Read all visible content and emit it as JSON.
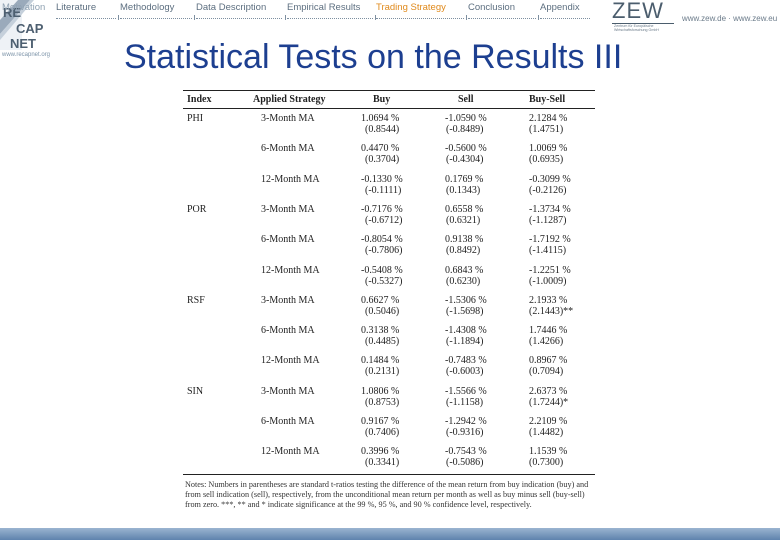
{
  "header": {
    "nav_items": [
      "Motivation",
      "Literature",
      "Methodology",
      "Data Description",
      "Empirical Results",
      "Trading Strategy",
      "Conclusion",
      "Appendix"
    ],
    "active_item": "Trading Strategy",
    "logo_left": "RE CAP NET",
    "logo_left_url": "www.recapnet.org",
    "logo_right": "ZEW",
    "logo_right_subtitle": "Zentrum für Europäische Wirtschaftsforschung GmbH",
    "logo_right_site": "www.zew.de · www.zew.eu"
  },
  "slide": {
    "title": "Statistical Tests on the Results III"
  },
  "table": {
    "headers": [
      "Index",
      "Applied Strategy",
      "Buy",
      "Sell",
      "Buy-Sell"
    ],
    "rows": [
      {
        "index": "PHI",
        "strategy": "3-Month MA",
        "buy": "1.0694 %",
        "buy_t": "(0.8544)",
        "sell": "-1.0590 %",
        "sell_t": "(-0.8489)",
        "bs": "2.1284 %",
        "bs_t": "(1.4751)"
      },
      {
        "index": "",
        "strategy": "6-Month MA",
        "buy": "0.4470 %",
        "buy_t": "(0.3704)",
        "sell": "-0.5600 %",
        "sell_t": "(-0.4304)",
        "bs": "1.0069 %",
        "bs_t": "(0.6935)"
      },
      {
        "index": "",
        "strategy": "12-Month MA",
        "buy": "-0.1330 %",
        "buy_t": "(-0.1111)",
        "sell": "0.1769 %",
        "sell_t": "(0.1343)",
        "bs": "-0.3099 %",
        "bs_t": "(-0.2126)"
      },
      {
        "index": "POR",
        "strategy": "3-Month MA",
        "buy": "-0.7176 %",
        "buy_t": "(-0.6712)",
        "sell": "0.6558 %",
        "sell_t": "(0.6321)",
        "bs": "-1.3734 %",
        "bs_t": "(-1.1287)"
      },
      {
        "index": "",
        "strategy": "6-Month MA",
        "buy": "-0.8054 %",
        "buy_t": "(-0.7806)",
        "sell": "0.9138 %",
        "sell_t": "(0.8492)",
        "bs": "-1.7192 %",
        "bs_t": "(-1.4115)"
      },
      {
        "index": "",
        "strategy": "12-Month MA",
        "buy": "-0.5408 %",
        "buy_t": "(-0.5327)",
        "sell": "0.6843 %",
        "sell_t": "(0.6230)",
        "bs": "-1.2251 %",
        "bs_t": "(-1.0009)"
      },
      {
        "index": "RSF",
        "strategy": "3-Month MA",
        "buy": "0.6627 %",
        "buy_t": "(0.5046)",
        "sell": "-1.5306 %",
        "sell_t": "(-1.5698)",
        "bs": "2.1933 %",
        "bs_t": "(2.1443)**"
      },
      {
        "index": "",
        "strategy": "6-Month MA",
        "buy": "0.3138 %",
        "buy_t": "(0.4485)",
        "sell": "-1.4308 %",
        "sell_t": "(-1.1894)",
        "bs": "1.7446 %",
        "bs_t": "(1.4266)"
      },
      {
        "index": "",
        "strategy": "12-Month MA",
        "buy": "0.1484 %",
        "buy_t": "(0.2131)",
        "sell": "-0.7483 %",
        "sell_t": "(-0.6003)",
        "bs": "0.8967 %",
        "bs_t": "(0.7094)"
      },
      {
        "index": "SIN",
        "strategy": "3-Month MA",
        "buy": "1.0806 %",
        "buy_t": "(0.8753)",
        "sell": "-1.5566 %",
        "sell_t": "(-1.1158)",
        "bs": "2.6373 %",
        "bs_t": "(1.7244)*"
      },
      {
        "index": "",
        "strategy": "6-Month MA",
        "buy": "0.9167 %",
        "buy_t": "(0.7406)",
        "sell": "-1.2942 %",
        "sell_t": "(-0.9316)",
        "bs": "2.2109 %",
        "bs_t": "(1.4482)"
      },
      {
        "index": "",
        "strategy": "12-Month MA",
        "buy": "0.3996 %",
        "buy_t": "(0.3341)",
        "sell": "-0.7543 %",
        "sell_t": "(-0.5086)",
        "bs": "1.1539 %",
        "bs_t": "(0.7300)"
      }
    ],
    "notes": "Notes: Numbers in parentheses are standard t-ratios testing the difference of the mean return from buy indication (buy) and from sell indication (sell), respectively, from the unconditional mean return per month as well as buy minus sell (buy-sell) from zero. ***, ** and * indicate significance at the 99 %, 95 %, and 90 % confidence level, respectively."
  },
  "colors": {
    "title": "#1d3f90",
    "nav_text": "#5d6f80",
    "nav_active": "#e08a1c",
    "bottom_bar": "#5f83ad"
  }
}
